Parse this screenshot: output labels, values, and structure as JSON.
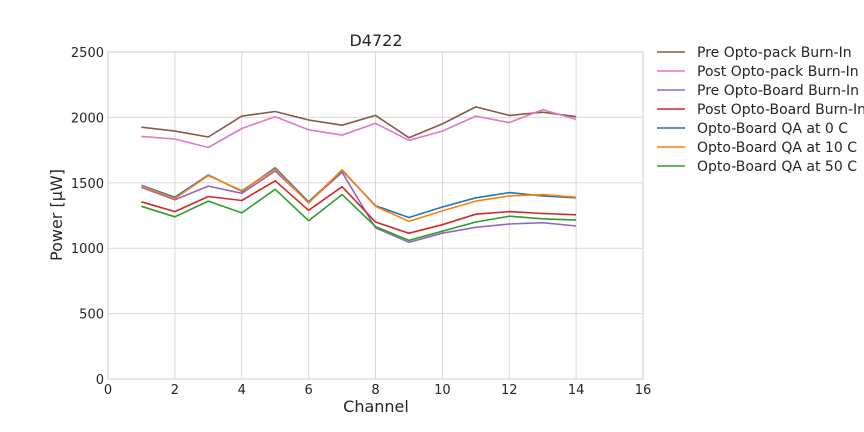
{
  "chart_data": {
    "type": "line",
    "title": "D4722",
    "xlabel": "Channel",
    "ylabel": "Power [μW]",
    "xlim": [
      0,
      16
    ],
    "ylim": [
      0,
      2500
    ],
    "xticks": [
      0,
      2,
      4,
      6,
      8,
      10,
      12,
      14,
      16
    ],
    "yticks": [
      0,
      500,
      1000,
      1500,
      2000,
      2500
    ],
    "grid": true,
    "legend_position": "outside-right",
    "x": [
      1,
      2,
      3,
      4,
      5,
      6,
      7,
      8,
      9,
      10,
      11,
      12,
      13,
      14
    ],
    "series": [
      {
        "name": "Pre Opto-pack Burn-In",
        "color": "#8c564b",
        "values": [
          1925,
          1895,
          1850,
          2010,
          2045,
          1980,
          1940,
          2015,
          1845,
          1950,
          2080,
          2015,
          2040,
          2005
        ]
      },
      {
        "name": "Post Opto-pack Burn-In",
        "color": "#e377c2",
        "values": [
          1855,
          1835,
          1770,
          1915,
          2005,
          1905,
          1865,
          1955,
          1825,
          1895,
          2010,
          1960,
          2060,
          1985
        ]
      },
      {
        "name": "Pre Opto-Board Burn-In",
        "color": "#9467bd",
        "values": [
          1465,
          1370,
          1475,
          1420,
          1590,
          1350,
          1580,
          1155,
          1045,
          1115,
          1160,
          1185,
          1195,
          1170
        ]
      },
      {
        "name": "Post Opto-Board Burn-In",
        "color": "#d62728",
        "values": [
          1355,
          1280,
          1395,
          1365,
          1515,
          1290,
          1470,
          1200,
          1115,
          1180,
          1260,
          1280,
          1265,
          1255
        ]
      },
      {
        "name": "Opto-Board QA at 0 C",
        "color": "#1f77b4",
        "values": [
          1480,
          1390,
          1560,
          1435,
          1615,
          1355,
          1595,
          1325,
          1235,
          1315,
          1385,
          1425,
          1400,
          1385
        ]
      },
      {
        "name": "Opto-Board QA at 10 C",
        "color": "#ff7f0e",
        "values": [
          1475,
          1380,
          1555,
          1440,
          1605,
          1345,
          1600,
          1320,
          1205,
          1285,
          1360,
          1400,
          1410,
          1390
        ]
      },
      {
        "name": "Opto-Board QA at 50 C",
        "color": "#2ca02c",
        "values": [
          1320,
          1240,
          1360,
          1270,
          1450,
          1210,
          1410,
          1165,
          1060,
          1130,
          1200,
          1245,
          1225,
          1215
        ]
      }
    ]
  }
}
